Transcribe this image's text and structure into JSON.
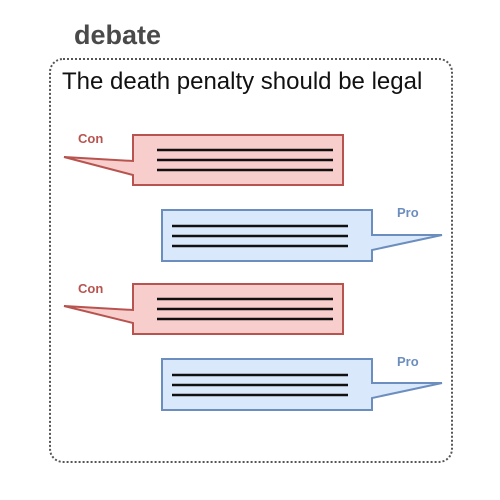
{
  "diagram": {
    "title": "debate",
    "motion": "The death penalty should be legal",
    "messages": [
      {
        "side": "Con"
      },
      {
        "side": "Pro"
      },
      {
        "side": "Con"
      },
      {
        "side": "Pro"
      }
    ]
  },
  "colors": {
    "con_fill": "#f8cecc",
    "con_stroke": "#b85450",
    "pro_fill": "#dae8fc",
    "pro_stroke": "#6c8ebf",
    "text_lines": "#111111",
    "frame": "#555555",
    "title": "#4a4a4a"
  }
}
